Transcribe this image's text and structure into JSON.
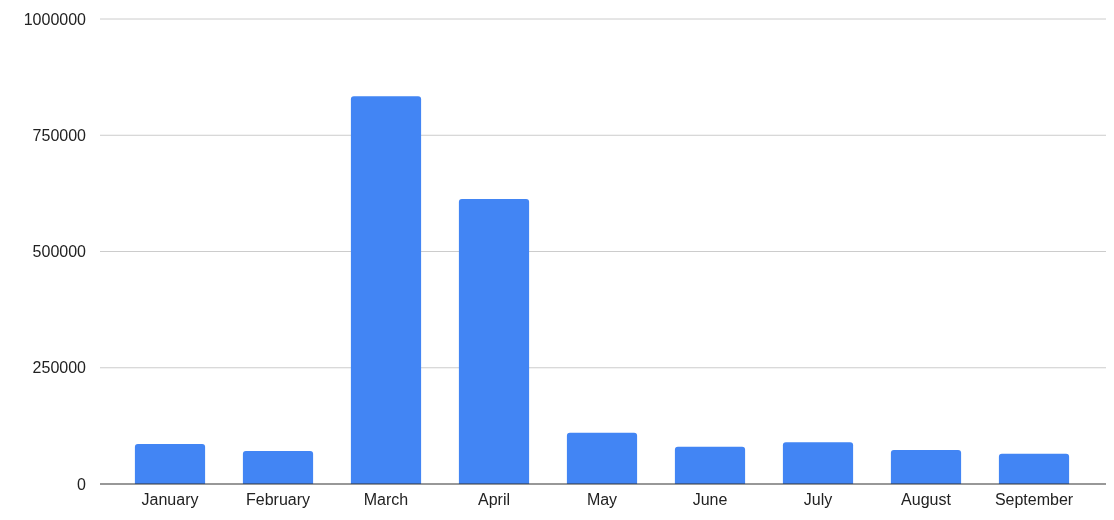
{
  "chart_data": {
    "type": "bar",
    "categories": [
      "January",
      "February",
      "March",
      "April",
      "May",
      "June",
      "July",
      "August",
      "September"
    ],
    "values": [
      86000,
      71000,
      834000,
      613000,
      110000,
      80000,
      90000,
      73000,
      65000
    ],
    "color": "#4285f4",
    "ylim": [
      0,
      1000000
    ],
    "yticks": [
      0,
      250000,
      500000,
      750000,
      1000000
    ],
    "grid": "y"
  }
}
